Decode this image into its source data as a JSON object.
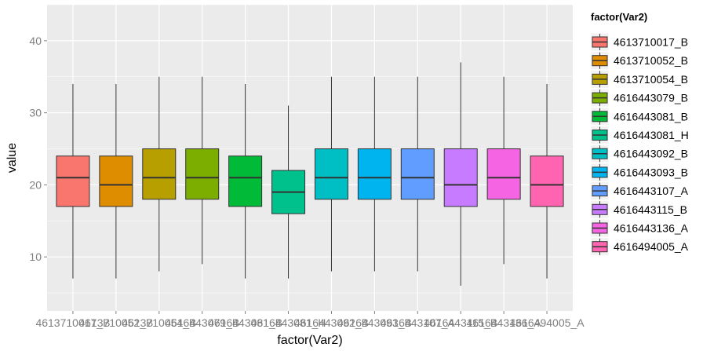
{
  "chart_data": {
    "type": "boxplot",
    "xlabel": "factor(Var2)",
    "ylabel": "value",
    "ylim": [
      2.5,
      45
    ],
    "yticks": [
      10,
      20,
      30,
      40
    ],
    "grid": true,
    "legend_title": "factor(Var2)",
    "legend_position": "right",
    "categories": [
      "4613710017_B",
      "4613710052_B",
      "4613710054_B",
      "4616443079_B",
      "4616443081_B",
      "4616443081_H",
      "4616443092_B",
      "4616443093_B",
      "4616443107_A",
      "4616443115_B",
      "4616443136_A",
      "4616494005_A"
    ],
    "colors": [
      "#F8766D",
      "#DE8C00",
      "#B79F00",
      "#7CAE00",
      "#00BA38",
      "#00C08B",
      "#00BFC4",
      "#00B4F0",
      "#619CFF",
      "#C77CFF",
      "#F564E3",
      "#FF64B0"
    ],
    "boxes": [
      {
        "min": 7,
        "q1": 17,
        "median": 21,
        "q3": 24,
        "max": 34
      },
      {
        "min": 7,
        "q1": 17,
        "median": 20,
        "q3": 24,
        "max": 34
      },
      {
        "min": 8,
        "q1": 18,
        "median": 21,
        "q3": 25,
        "max": 35
      },
      {
        "min": 9,
        "q1": 18,
        "median": 21,
        "q3": 25,
        "max": 35
      },
      {
        "min": 7,
        "q1": 17,
        "median": 21,
        "q3": 24,
        "max": 34
      },
      {
        "min": 7,
        "q1": 16,
        "median": 19,
        "q3": 22,
        "max": 31
      },
      {
        "min": 8,
        "q1": 18,
        "median": 21,
        "q3": 25,
        "max": 35
      },
      {
        "min": 8,
        "q1": 18,
        "median": 21,
        "q3": 25,
        "max": 35
      },
      {
        "min": 8,
        "q1": 18,
        "median": 21,
        "q3": 25,
        "max": 35
      },
      {
        "min": 6,
        "q1": 17,
        "median": 20,
        "q3": 25,
        "max": 37
      },
      {
        "min": 9,
        "q1": 18,
        "median": 21,
        "q3": 25,
        "max": 35
      },
      {
        "min": 7,
        "q1": 17,
        "median": 20,
        "q3": 24,
        "max": 34
      }
    ]
  }
}
